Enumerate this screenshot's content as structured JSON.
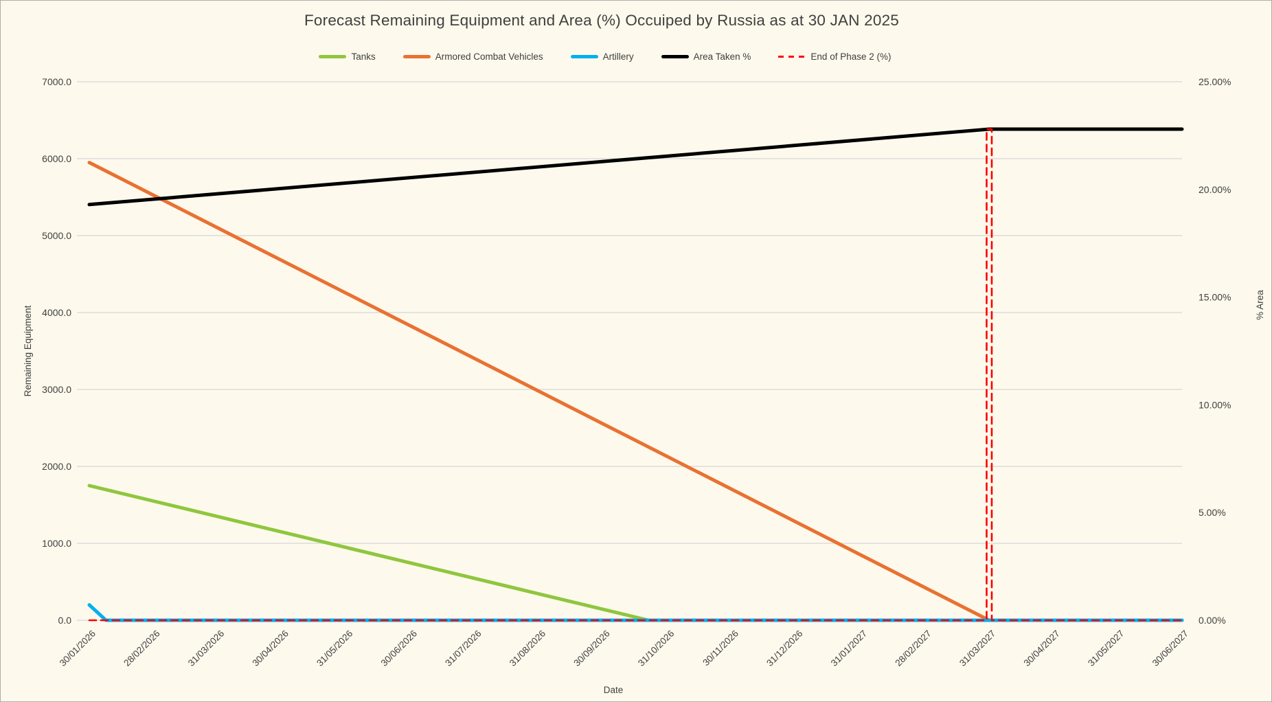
{
  "chart": {
    "title": "Forecast Remaining Equipment and Area (%) Occuiped by Russia as at 30 JAN 2025"
  },
  "chart_data": {
    "type": "line",
    "title": "Forecast Remaining Equipment and Area (%) Occuiped by Russia as at 30 JAN 2025",
    "xlabel": "Date",
    "grid": "horizontal-only",
    "legend_position": "top-center",
    "background_color": "#FDF9EC",
    "gridline_color": "#DCDCDC",
    "text_color": "#3F3F3F",
    "x_categories": [
      "30/01/2026",
      "28/02/2026",
      "31/03/2026",
      "30/04/2026",
      "31/05/2026",
      "30/06/2026",
      "31/07/2026",
      "31/08/2026",
      "30/09/2026",
      "31/10/2026",
      "30/11/2026",
      "31/12/2026",
      "31/01/2027",
      "28/02/2027",
      "31/03/2027",
      "30/04/2027",
      "31/05/2027",
      "30/06/2027"
    ],
    "y_left_axis": {
      "label": "Remaining Equipment",
      "min": 0,
      "max": 7000,
      "tick_step": 1000,
      "tick_labels": [
        "7000.0",
        "6000.0",
        "5000.0",
        "4000.0",
        "3000.0",
        "2000.0",
        "1000.0",
        "0.0"
      ]
    },
    "y_right_axis": {
      "label": "% Area",
      "min": 0,
      "max": 25,
      "tick_step": 5,
      "tick_labels": [
        "25.00%",
        "20.00%",
        "15.00%",
        "10.00%",
        "5.00%",
        "0.00%"
      ]
    },
    "series": [
      {
        "name": "Tanks",
        "axis": "left",
        "color": "#8FC63E",
        "style": "solid",
        "points": [
          {
            "x": 0,
            "y": 1750
          },
          {
            "x": 8.7,
            "y": 0
          },
          {
            "x": 17,
            "y": 0
          }
        ],
        "note": "starts ~1750 on 30/01/2026, linear decline to 0 just before 31/10/2026, then flat at 0"
      },
      {
        "name": "Armored Combat Vehicles",
        "axis": "left",
        "color": "#E97132",
        "style": "solid",
        "points": [
          {
            "x": 0,
            "y": 5950
          },
          {
            "x": 14,
            "y": 0
          },
          {
            "x": 17,
            "y": 0
          }
        ],
        "note": "starts ~5950 on 30/01/2026, linear decline to 0 at 31/03/2027, then flat at 0"
      },
      {
        "name": "Artillery",
        "axis": "left",
        "color": "#00B0F0",
        "style": "solid",
        "points": [
          {
            "x": 0,
            "y": 200
          },
          {
            "x": 0.26,
            "y": 0
          },
          {
            "x": 17,
            "y": 0
          }
        ],
        "note": "starts ~200 on 30/01/2026, drops to 0 within first month, then flat at 0"
      },
      {
        "name": "Area Taken %",
        "axis": "right",
        "color": "#000000",
        "style": "solid",
        "points": [
          {
            "x": 0,
            "y": 19.3
          },
          {
            "x": 14,
            "y": 22.8
          },
          {
            "x": 17,
            "y": 22.8
          }
        ],
        "note": "rises ~19.3% to ~22.8% at 31/03/2027, flat afterwards"
      },
      {
        "name": "End of Phase 2 (%)",
        "axis": "right",
        "color": "#FF0000",
        "style": "dashed",
        "points": [
          {
            "x": 0,
            "y": 0
          },
          {
            "x": 13.96,
            "y": 0
          },
          {
            "x": 13.96,
            "y": 22.8
          },
          {
            "x": 14.04,
            "y": 22.8
          },
          {
            "x": 14.04,
            "y": 0
          },
          {
            "x": 17,
            "y": 0
          }
        ],
        "note": "0% across all dates with a vertical dashed spike to ~22.8% at 31/03/2027"
      }
    ]
  }
}
